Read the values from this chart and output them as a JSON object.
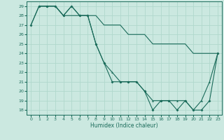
{
  "xlabel": "Humidex (Indice chaleur)",
  "bg_color": "#cbe8e0",
  "grid_color": "#b0d8cc",
  "line_color": "#1a6b5a",
  "xlim": [
    -0.5,
    23.5
  ],
  "ylim": [
    17.5,
    29.5
  ],
  "xticks": [
    0,
    1,
    2,
    3,
    4,
    5,
    6,
    7,
    8,
    9,
    10,
    11,
    12,
    13,
    14,
    15,
    16,
    17,
    18,
    19,
    20,
    21,
    22,
    23
  ],
  "yticks": [
    18,
    19,
    20,
    21,
    22,
    23,
    24,
    25,
    26,
    27,
    28,
    29
  ],
  "line1_x": [
    0,
    1,
    2,
    3,
    4,
    5,
    6,
    7,
    8,
    9,
    10,
    11,
    12,
    13,
    14,
    15,
    16,
    17,
    18,
    19,
    20,
    21,
    22,
    23
  ],
  "line1_y": [
    27,
    29,
    29,
    29,
    28,
    29,
    28,
    28,
    25,
    23,
    21,
    21,
    21,
    21,
    20,
    18,
    19,
    19,
    18,
    19,
    18,
    18,
    19,
    24
  ],
  "line2_x": [
    1,
    2,
    3,
    4,
    5,
    6,
    7,
    8,
    9,
    10,
    11,
    12,
    13,
    14,
    15,
    16,
    17,
    18,
    19,
    20,
    21,
    22,
    23
  ],
  "line2_y": [
    29,
    29,
    29,
    28,
    29,
    28,
    28,
    25,
    23,
    22,
    21,
    21,
    21,
    20,
    19,
    19,
    19,
    19,
    19,
    18,
    19,
    21,
    24
  ],
  "line3_x": [
    0,
    1,
    2,
    3,
    4,
    5,
    6,
    7,
    8,
    9,
    10,
    11,
    12,
    13,
    14,
    15,
    16,
    17,
    18,
    19,
    20,
    21,
    22,
    23
  ],
  "line3_y": [
    27,
    29,
    29,
    29,
    28,
    28,
    28,
    28,
    28,
    27,
    27,
    27,
    26,
    26,
    26,
    25,
    25,
    25,
    25,
    25,
    24,
    24,
    24,
    24
  ]
}
